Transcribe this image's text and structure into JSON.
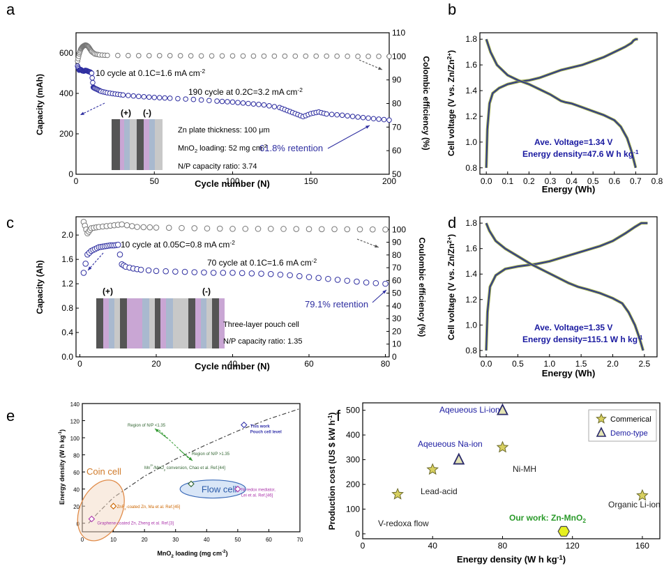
{
  "colors": {
    "capacity": "#2e2ea0",
    "ce": "#777777",
    "annot": "#2e2ea0",
    "blue_text": "#1a1aa0",
    "green": "#339933"
  },
  "chart_data": [
    {
      "panel": "a",
      "type": "scatter",
      "xlabel": "Cycle number (N)",
      "ylabel": "Capacity (mAh)",
      "y2label": "Colombic efficiency (%)",
      "xlim": [
        0,
        200
      ],
      "ylim": [
        0,
        700
      ],
      "y2lim": [
        50,
        110
      ],
      "xticks": [
        "0",
        "50",
        "100",
        "150",
        "200"
      ],
      "yticks": [
        "0",
        "200",
        "400",
        "600"
      ],
      "y2ticks": [
        "50",
        "60",
        "70",
        "80",
        "90",
        "100",
        "110"
      ],
      "annotations": [
        "10 cycle at 0.1C=1.6 mA cm",
        "190 cycle at 0.2C=3.2 mA cm",
        "61.8% retention"
      ],
      "inset": {
        "plus": "(+)",
        "minus": "(-)",
        "lines": [
          "Zn plate thickness: 100 μm",
          "MnO",
          "loading: 52 mg cm",
          "N/P capacity ratio: 3.74"
        ]
      },
      "capacity_series": {
        "x": [
          1,
          2,
          3,
          4,
          5,
          6,
          7,
          8,
          9,
          10,
          11,
          12,
          14,
          16,
          20,
          25,
          30,
          40,
          50,
          60,
          75,
          90,
          100,
          110,
          120,
          130,
          135,
          140,
          145,
          150,
          155,
          160,
          170,
          180,
          190,
          200
        ],
        "y": [
          535,
          515,
          518,
          512,
          510,
          514,
          512,
          508,
          506,
          500,
          430,
          425,
          418,
          410,
          403,
          397,
          392,
          385,
          380,
          376,
          370,
          362,
          357,
          350,
          343,
          330,
          315,
          300,
          285,
          300,
          308,
          298,
          292,
          283,
          275,
          268
        ]
      },
      "ce_series": {
        "x": [
          1,
          2,
          3,
          4,
          5,
          6,
          7,
          8,
          9,
          10,
          12,
          15,
          20,
          40,
          60,
          80,
          100,
          120,
          140,
          160,
          180,
          200
        ],
        "y": [
          98,
          101,
          103,
          104,
          104.5,
          104.8,
          104.6,
          104,
          103,
          102,
          101,
          100.6,
          100.4,
          100.3,
          100.3,
          100.2,
          100.2,
          100.1,
          100.1,
          100.1,
          100.0,
          100.0
        ]
      }
    },
    {
      "panel": "b",
      "type": "line",
      "xlabel": "Energy (Wh)",
      "ylabel": "Cell voltage (V vs. Zn/Zn",
      "xlim": [
        0,
        0.8
      ],
      "ylim": [
        0.8,
        1.8
      ],
      "xticks": [
        "0.0",
        "0.1",
        "0.2",
        "0.3",
        "0.4",
        "0.5",
        "0.6",
        "0.7",
        "0.8"
      ],
      "yticks": [
        "0.8",
        "1.0",
        "1.2",
        "1.4",
        "1.6",
        "1.8"
      ],
      "annotations": [
        "Ave. Voltage=1.34 V",
        "Energy density=47.6 W h kg"
      ],
      "charge": {
        "x": [
          0,
          0.005,
          0.015,
          0.03,
          0.06,
          0.1,
          0.15,
          0.2,
          0.25,
          0.3,
          0.35,
          0.4,
          0.45,
          0.5,
          0.55,
          0.6,
          0.65,
          0.68,
          0.69,
          0.7,
          0.71
        ],
        "y": [
          0.8,
          1.1,
          1.3,
          1.38,
          1.42,
          1.45,
          1.47,
          1.48,
          1.5,
          1.53,
          1.56,
          1.58,
          1.6,
          1.63,
          1.66,
          1.7,
          1.74,
          1.77,
          1.79,
          1.8,
          1.8
        ]
      },
      "discharge": {
        "x": [
          0,
          0.02,
          0.05,
          0.1,
          0.15,
          0.2,
          0.25,
          0.3,
          0.35,
          0.37,
          0.4,
          0.45,
          0.5,
          0.55,
          0.6,
          0.63,
          0.66,
          0.68,
          0.7
        ],
        "y": [
          1.8,
          1.7,
          1.6,
          1.52,
          1.48,
          1.45,
          1.41,
          1.37,
          1.32,
          1.31,
          1.3,
          1.27,
          1.24,
          1.21,
          1.17,
          1.12,
          1.03,
          0.93,
          0.8
        ]
      }
    },
    {
      "panel": "c",
      "type": "scatter",
      "xlabel": "Cycle number (N)",
      "ylabel": "Capacity (Ah)",
      "y2label": "Coulombic efficiency (%)",
      "xlim": [
        0,
        80
      ],
      "ylim": [
        0,
        2.3
      ],
      "y2lim": [
        0,
        110
      ],
      "xticks": [
        "0",
        "20",
        "40",
        "60",
        "80"
      ],
      "yticks": [
        "0.0",
        "0.4",
        "0.8",
        "1.2",
        "1.6",
        "2.0"
      ],
      "y2ticks": [
        "0",
        "10",
        "20",
        "30",
        "40",
        "50",
        "60",
        "70",
        "80",
        "90",
        "100"
      ],
      "annotations": [
        "10 cycle at 0.05C=0.8 mA cm",
        "70 cycle at 0.1C=1.6 mA cm",
        "79.1% retention"
      ],
      "inset": {
        "plus": "(+)",
        "minus": "(-)",
        "lines": [
          "Three-layer pouch cell",
          "N/P capacity ratio: 1.35"
        ]
      },
      "capacity_series": {
        "x": [
          1,
          2,
          3,
          4,
          5,
          6,
          7,
          8,
          9,
          10,
          11,
          12,
          14,
          16,
          20,
          25,
          30,
          35,
          40,
          45,
          50,
          55,
          60,
          65,
          70,
          75,
          80
        ],
        "y": [
          1.38,
          1.68,
          1.74,
          1.77,
          1.8,
          1.81,
          1.82,
          1.83,
          1.83,
          1.84,
          1.52,
          1.48,
          1.45,
          1.43,
          1.41,
          1.4,
          1.39,
          1.38,
          1.38,
          1.37,
          1.36,
          1.34,
          1.31,
          1.28,
          1.25,
          1.22,
          1.2
        ]
      },
      "ce_series": {
        "x": [
          1,
          2,
          3,
          5,
          8,
          11,
          15,
          20,
          30,
          40,
          50,
          60,
          70,
          80
        ],
        "y": [
          106,
          97,
          101,
          102,
          103,
          104,
          102,
          101.5,
          101,
          100.5,
          100.5,
          100.3,
          100.2,
          100
        ]
      }
    },
    {
      "panel": "d",
      "type": "line",
      "xlabel": "Energy (Wh)",
      "ylabel": "Cell voltage (V vs. Zn/Zn",
      "xlim": [
        -0.1,
        2.7
      ],
      "ylim": [
        0.8,
        1.8
      ],
      "xticks": [
        "0.0",
        "0.5",
        "1.0",
        "1.5",
        "2.0",
        "2.5"
      ],
      "yticks": [
        "0.8",
        "1.0",
        "1.2",
        "1.4",
        "1.6",
        "1.8"
      ],
      "annotations": [
        "Ave. Voltage=1.35 V",
        "Energy density=115.1 W h kg"
      ],
      "charge": {
        "x": [
          0,
          0.02,
          0.06,
          0.15,
          0.3,
          0.5,
          0.8,
          1.0,
          1.2,
          1.4,
          1.6,
          1.8,
          2.0,
          2.2,
          2.35,
          2.45,
          2.55
        ],
        "y": [
          0.8,
          1.1,
          1.3,
          1.39,
          1.44,
          1.46,
          1.48,
          1.5,
          1.53,
          1.56,
          1.59,
          1.62,
          1.66,
          1.72,
          1.77,
          1.8,
          1.8
        ]
      },
      "discharge": {
        "x": [
          0,
          0.05,
          0.15,
          0.3,
          0.5,
          0.7,
          0.9,
          1.1,
          1.3,
          1.45,
          1.6,
          1.8,
          2.0,
          2.15,
          2.25,
          2.35,
          2.42,
          2.48
        ],
        "y": [
          1.8,
          1.74,
          1.66,
          1.6,
          1.54,
          1.48,
          1.43,
          1.38,
          1.33,
          1.3,
          1.28,
          1.25,
          1.21,
          1.17,
          1.1,
          1.0,
          0.9,
          0.8
        ]
      }
    },
    {
      "panel": "e",
      "type": "scatter",
      "xlabel": "MnO",
      "xlabel_tail": "loading (mg cm",
      "ylabel": "Energy density (W h kg",
      "xlim": [
        0,
        70
      ],
      "ylim": [
        -10,
        140
      ],
      "xticks": [
        "0",
        "10",
        "20",
        "30",
        "40",
        "50",
        "60",
        "70"
      ],
      "yticks": [
        "0",
        "20",
        "40",
        "60",
        "80",
        "100",
        "120",
        "140"
      ],
      "fit": {
        "x": [
          2,
          5,
          10,
          20,
          30,
          40,
          50,
          60,
          70
        ],
        "y": [
          0,
          12,
          30,
          55,
          75,
          92,
          108,
          122,
          134
        ]
      },
      "points": [
        {
          "x": 52,
          "y": 115,
          "label": "This work",
          "label2": "Pouch cell level",
          "color": "#3333aa"
        },
        {
          "x": 35,
          "y": 46,
          "label": "Mn",
          "label_tail": "/MnO",
          "label_tail2": " conversion, Chao et al. Ref.[44]",
          "color": "#336633"
        },
        {
          "x": 50,
          "y": 40,
          "label": "Ni-redox mediator,",
          "label2": "Lei et al. Ref.[46]",
          "color": "#aa33aa"
        },
        {
          "x": 10,
          "y": 20,
          "label": "ZnF",
          "label_tail": "-coated Zn, Ma et al. Ref.[45]",
          "color": "#cc6600"
        },
        {
          "x": 3,
          "y": 5,
          "label": "Graphene-coated Zn, Zheng et al. Ref.[3]",
          "color": "#aa33aa"
        }
      ],
      "regions": [
        "Region of N/P <1.35",
        "Region of N/P >1.35"
      ],
      "ellipses": [
        "Coin cell",
        "Flow cell"
      ]
    },
    {
      "panel": "f",
      "type": "scatter",
      "xlabel": "Energy density (W h kg",
      "ylabel": "Production cost (US $ kW h",
      "xlim": [
        0,
        170
      ],
      "ylim": [
        -20,
        530
      ],
      "xticks": [
        "0",
        "40",
        "80",
        "120",
        "160"
      ],
      "yticks": [
        "0",
        "100",
        "200",
        "300",
        "400",
        "500"
      ],
      "legend": [
        "Commerical",
        "Demo-type"
      ],
      "points": [
        {
          "name": "V-redoxa flow",
          "x": 20,
          "y": 160,
          "marker": "star"
        },
        {
          "name": "Lead-acid",
          "x": 40,
          "y": 260,
          "marker": "star"
        },
        {
          "name": "Ni-MH",
          "x": 80,
          "y": 350,
          "marker": "star"
        },
        {
          "name": "Organic Li-ion",
          "x": 160,
          "y": 155,
          "marker": "star"
        },
        {
          "name": "Aqeueous Li-ion",
          "x": 80,
          "y": 500,
          "marker": "triangle"
        },
        {
          "name": "Aqeueous Na-ion",
          "x": 55,
          "y": 300,
          "marker": "triangle"
        },
        {
          "name": "Our work: Zn-MnO",
          "x": 115,
          "y": 10,
          "marker": "hexagon"
        }
      ]
    }
  ],
  "panel_letters": [
    "a",
    "b",
    "c",
    "d",
    "e",
    "f"
  ]
}
